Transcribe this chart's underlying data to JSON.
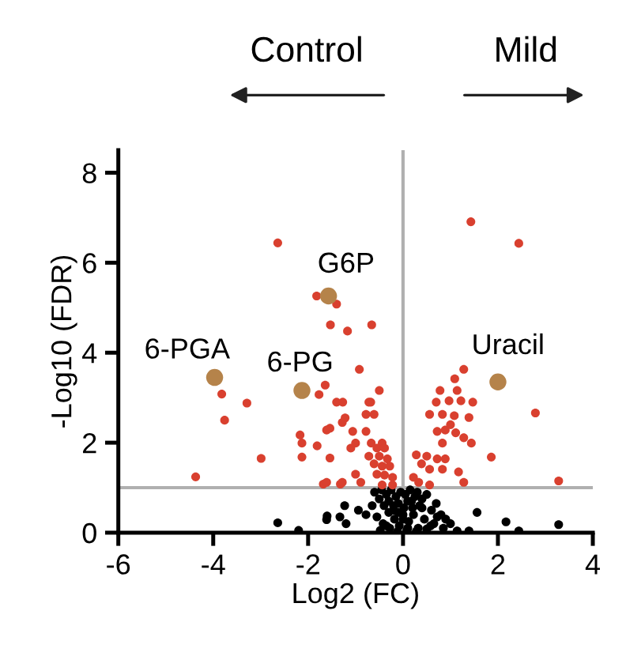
{
  "chart_data": {
    "type": "scatter",
    "xlabel": "Log2 (FC)",
    "ylabel": "-Log10 (FDR)",
    "xlim": [
      -6,
      4
    ],
    "xticks": [
      -6,
      -4,
      -2,
      0,
      2,
      4
    ],
    "ylim": [
      0,
      8.5
    ],
    "yticks": [
      0,
      2,
      4,
      6,
      8
    ],
    "grid": false,
    "marker": "circle",
    "ref_lines": [
      {
        "axis": "x",
        "value": 0,
        "color": "#b0b0b0"
      },
      {
        "axis": "y",
        "value": 1,
        "color": "#b0b0b0"
      }
    ],
    "series": [
      {
        "color": "#d9402f",
        "x": [
          -2.64,
          -1.82,
          -1.4,
          -1.53,
          -1.17,
          -0.66,
          -0.92,
          -0.5,
          -1.64,
          -1.77,
          -3.82,
          -3.29,
          -3.76,
          -2.99,
          -4.37,
          -2.17,
          -2.13,
          -2.13,
          -1.81,
          -1.54,
          -1.54,
          -1.68,
          -1.32,
          -1.4,
          -1.27,
          -1.22,
          -1.28,
          -0.68,
          -0.72,
          -0.78,
          -0.61,
          -1.61,
          -1.06,
          -0.78,
          -1.0,
          -0.67,
          -0.44,
          -1.1,
          -0.55,
          -0.39,
          -0.72,
          -0.5,
          -0.33,
          -0.61,
          -0.44,
          -0.28,
          -1.0,
          -0.55,
          -0.39,
          -0.22,
          -1.61,
          -1.28,
          -0.89,
          -0.44,
          -0.22,
          1.43,
          2.44,
          2.79,
          1.86,
          3.28,
          1.28,
          1.09,
          0.78,
          1.14,
          1.22,
          0.97,
          0.7,
          1.47,
          0.56,
          0.83,
          1.08,
          1.39,
          0.72,
          0.89,
          1.0,
          1.11,
          1.28,
          1.44,
          0.83,
          0.5,
          0.72,
          0.89,
          0.28,
          0.39,
          0.56,
          0.83,
          1.17,
          1.28,
          0.22,
          0.33,
          0.56
        ],
        "values": [
          6.44,
          5.26,
          5.08,
          4.62,
          4.48,
          4.62,
          3.63,
          3.16,
          3.28,
          3.07,
          3.08,
          2.88,
          2.5,
          1.65,
          1.24,
          2.17,
          1.99,
          1.68,
          1.93,
          2.32,
          1.66,
          1.08,
          1.08,
          2.9,
          2.9,
          2.55,
          2.45,
          2.9,
          2.9,
          2.63,
          2.63,
          2.28,
          2.25,
          2.25,
          1.99,
          1.99,
          1.99,
          1.88,
          1.88,
          1.88,
          1.7,
          1.7,
          1.64,
          1.53,
          1.48,
          1.48,
          1.3,
          1.3,
          1.28,
          1.23,
          1.12,
          1.12,
          1.12,
          1.06,
          1.06,
          6.91,
          6.43,
          2.66,
          1.68,
          1.15,
          3.63,
          3.42,
          3.16,
          3.16,
          2.93,
          2.93,
          2.9,
          2.9,
          2.63,
          2.63,
          2.6,
          2.56,
          2.25,
          2.28,
          2.4,
          2.22,
          2.11,
          1.99,
          1.99,
          1.7,
          1.64,
          1.64,
          1.73,
          1.53,
          1.41,
          1.41,
          1.35,
          1.12,
          1.23,
          1.12,
          1.06
        ]
      },
      {
        "color": "#000000",
        "x": [
          -2.64,
          -2.2,
          -1.6,
          -1.23,
          -1.61,
          -1.33,
          -1.2,
          -0.94,
          -0.78,
          1.56,
          2.17,
          3.28,
          1.14,
          1.39,
          2.44,
          -0.6,
          -0.5,
          -0.45,
          -0.4,
          -0.35,
          -0.3,
          -0.25,
          -0.2,
          -0.15,
          -0.1,
          -0.05,
          0.0,
          0.05,
          0.1,
          0.15,
          0.2,
          0.25,
          0.3,
          0.35,
          0.4,
          0.5,
          0.6,
          0.7,
          0.8,
          0.9,
          1.0,
          -0.55,
          -0.42,
          -0.3,
          -0.18,
          -0.08,
          0.02,
          0.12,
          0.22,
          0.32,
          0.45,
          0.58,
          0.72,
          0.85,
          -0.48,
          -0.28,
          -0.12,
          0.08,
          0.28,
          0.5,
          -0.2,
          0.0,
          0.18,
          -0.35,
          0.4,
          -0.65,
          0.65,
          -0.1,
          0.1
        ],
        "values": [
          0.22,
          0.05,
          0.37,
          0.6,
          0.29,
          0.35,
          0.2,
          0.5,
          0.4,
          0.45,
          0.24,
          0.18,
          0.04,
          0.04,
          0.04,
          0.9,
          0.75,
          0.95,
          0.6,
          0.85,
          0.7,
          0.95,
          0.5,
          0.8,
          0.65,
          0.9,
          0.4,
          0.85,
          0.7,
          0.95,
          0.55,
          0.8,
          0.9,
          0.6,
          0.75,
          0.85,
          0.5,
          0.65,
          0.4,
          0.3,
          0.2,
          0.35,
          0.2,
          0.45,
          0.3,
          0.15,
          0.55,
          0.25,
          0.4,
          0.1,
          0.3,
          0.15,
          0.35,
          0.1,
          0.05,
          0.1,
          0.02,
          0.05,
          0.03,
          0.08,
          0.6,
          0.3,
          0.7,
          0.15,
          0.55,
          0.6,
          0.2,
          0.45,
          0.1
        ]
      },
      {
        "color": "#b5834a",
        "x": [
          -3.97,
          -2.13,
          -1.57,
          2.0
        ],
        "values": [
          3.45,
          3.16,
          5.26,
          3.35
        ]
      }
    ],
    "annotations": [
      "Control",
      "Mild",
      {
        "text": "6-PGA",
        "x": -3.97,
        "y": 3.45
      },
      {
        "text": "6-PG",
        "x": -2.13,
        "y": 3.16
      },
      {
        "text": "G6P",
        "x": -1.57,
        "y": 5.26
      },
      {
        "text": "Uracil",
        "x": 2.0,
        "y": 3.35
      }
    ]
  }
}
